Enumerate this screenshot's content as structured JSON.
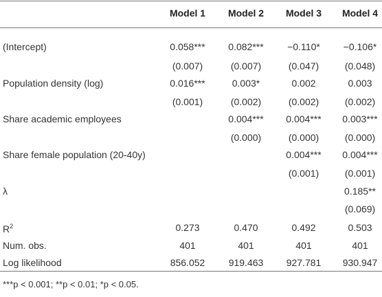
{
  "table": {
    "header": [
      "Model 1",
      "Model 2",
      "Model 3",
      "Model 4"
    ],
    "rows": [
      {
        "label": "(Intercept)",
        "cells": [
          "0.058***",
          "0.082***",
          "−0.110*",
          "−0.106*"
        ]
      },
      {
        "label": null,
        "cells": [
          "(0.007)",
          "(0.007)",
          "(0.047)",
          "(0.048)"
        ]
      },
      {
        "label": "Population density (log)",
        "cells": [
          "0.016***",
          "0.003*",
          "0.002",
          "0.003"
        ]
      },
      {
        "label": null,
        "cells": [
          "(0.001)",
          "(0.002)",
          "(0.002)",
          "(0.002)"
        ]
      },
      {
        "label": "Share academic employees",
        "cells": [
          null,
          "0.004***",
          "0.004***",
          "0.003***"
        ]
      },
      {
        "label": null,
        "cells": [
          null,
          "(0.000)",
          "(0.000)",
          "(0.000)"
        ]
      },
      {
        "label": "Share female population (20-40y)",
        "cells": [
          null,
          null,
          "0.004***",
          "0.004***"
        ]
      },
      {
        "label": null,
        "cells": [
          null,
          null,
          "(0.001)",
          "(0.001)"
        ]
      },
      {
        "label": "λ",
        "cells": [
          null,
          null,
          null,
          "0.185**"
        ]
      },
      {
        "label": null,
        "cells": [
          null,
          null,
          null,
          "(0.069)"
        ]
      },
      {
        "label": "R",
        "label_sup": "2",
        "cells": [
          "0.273",
          "0.470",
          "0.492",
          "0.503"
        ]
      },
      {
        "label": "Num. obs.",
        "cells": [
          "401",
          "401",
          "401",
          "401"
        ]
      },
      {
        "label": "Log likelihood",
        "cells": [
          "856.052",
          "919.463",
          "927.781",
          "930.947"
        ]
      }
    ],
    "footnote": "***p < 0.001; **p < 0.01; *p < 0.05."
  }
}
